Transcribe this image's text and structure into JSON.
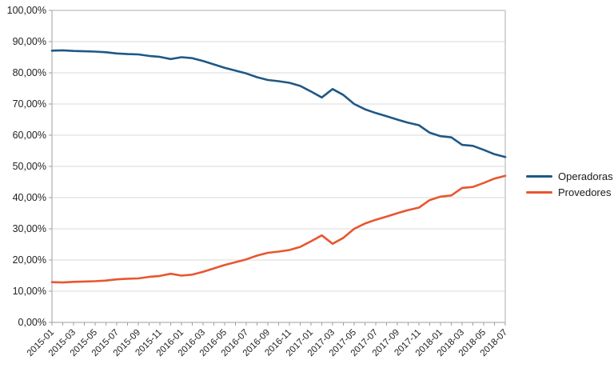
{
  "chart_data": {
    "type": "line",
    "title": "",
    "xlabel": "",
    "ylabel": "",
    "ylim": [
      0,
      100
    ],
    "y_tick_step": 10,
    "y_tick_labels": [
      "0,00%",
      "10,00%",
      "20,00%",
      "30,00%",
      "40,00%",
      "50,00%",
      "60,00%",
      "70,00%",
      "80,00%",
      "90,00%",
      "100,00%"
    ],
    "x_label_every": 2,
    "grid": "horizontal",
    "legend_position": "right",
    "x": [
      "2015-01",
      "2015-02",
      "2015-03",
      "2015-04",
      "2015-05",
      "2015-06",
      "2015-07",
      "2015-08",
      "2015-09",
      "2015-10",
      "2015-11",
      "2015-12",
      "2016-01",
      "2016-02",
      "2016-03",
      "2016-04",
      "2016-05",
      "2016-06",
      "2016-07",
      "2016-08",
      "2016-09",
      "2016-10",
      "2016-11",
      "2016-12",
      "2017-01",
      "2017-02",
      "2017-03",
      "2017-04",
      "2017-05",
      "2017-06",
      "2017-07",
      "2017-08",
      "2017-09",
      "2017-10",
      "2017-11",
      "2017-12",
      "2018-01",
      "2018-02",
      "2018-03",
      "2018-04",
      "2018-05",
      "2018-06",
      "2018-07"
    ],
    "series": [
      {
        "name": "Operadoras",
        "color": "#1F5886",
        "values": [
          87.1,
          87.2,
          87.0,
          86.9,
          86.8,
          86.6,
          86.2,
          86.0,
          85.9,
          85.4,
          85.1,
          84.4,
          85.0,
          84.7,
          83.8,
          82.7,
          81.6,
          80.7,
          79.8,
          78.6,
          77.7,
          77.3,
          76.8,
          75.8,
          74.0,
          72.1,
          74.8,
          72.9,
          70.0,
          68.3,
          67.1,
          66.1,
          65.0,
          64.0,
          63.2,
          60.8,
          59.7,
          59.3,
          56.9,
          56.6,
          55.3,
          53.9,
          53.0
        ]
      },
      {
        "name": "Provedores",
        "color": "#E8562F",
        "values": [
          12.9,
          12.8,
          13.0,
          13.1,
          13.2,
          13.4,
          13.8,
          14.0,
          14.1,
          14.6,
          14.9,
          15.6,
          15.0,
          15.3,
          16.2,
          17.3,
          18.4,
          19.3,
          20.2,
          21.4,
          22.3,
          22.7,
          23.2,
          24.2,
          26.0,
          27.9,
          25.2,
          27.1,
          30.0,
          31.7,
          32.9,
          33.9,
          35.0,
          36.0,
          36.8,
          39.2,
          40.3,
          40.7,
          43.1,
          43.4,
          44.7,
          46.1,
          47.0
        ]
      }
    ]
  },
  "legend": {
    "items": [
      {
        "label": "Operadoras",
        "color": "#1F5886"
      },
      {
        "label": "Provedores",
        "color": "#E8562F"
      }
    ]
  },
  "colors": {
    "gridline": "#d9d9d9",
    "frame": "#c8c8c8",
    "axis": "#9f9f9f",
    "tick": "#9f9f9f",
    "label_text": "#1f1f1f"
  }
}
